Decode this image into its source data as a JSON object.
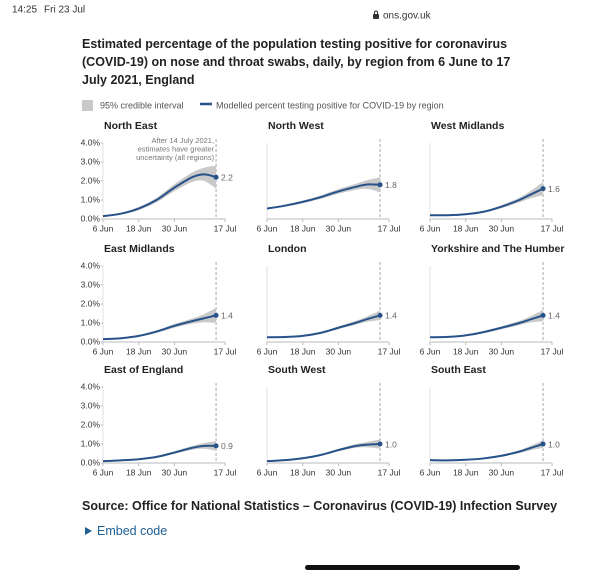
{
  "status_bar": {
    "time": "14:25",
    "date": "Fri 23 Jul",
    "url": "ons.gov.uk"
  },
  "title": "Estimated percentage of the population testing positive for coronavirus (COVID-19) on nose and throat swabs, daily, by region from 6 June to 17 July 2021, England",
  "legend": {
    "band": "95% credible interval",
    "line": "Modelled percent testing positive for COVID-19 by region"
  },
  "source": "Source: Office for National Statistics – Coronavirus (COVID-19) Infection Survey",
  "embed": "Embed code",
  "chart_data": [
    {
      "type": "line",
      "title": "North East",
      "color": "#27528a",
      "band_color": "#c9c9c9",
      "x": [
        "2021-06-06",
        "2021-06-12",
        "2021-06-18",
        "2021-06-24",
        "2021-06-30",
        "2021-07-06",
        "2021-07-10",
        "2021-07-14"
      ],
      "values": [
        0.15,
        0.28,
        0.55,
        1.0,
        1.65,
        2.2,
        2.35,
        2.2
      ],
      "lower": [
        0.11,
        0.23,
        0.47,
        0.88,
        1.47,
        1.95,
        2.0,
        1.6
      ],
      "upper": [
        0.19,
        0.33,
        0.63,
        1.12,
        1.83,
        2.45,
        2.7,
        2.8
      ],
      "value_labels": [
        null,
        null,
        null,
        null,
        null,
        null,
        null,
        "2.2"
      ],
      "xlim": [
        "2021-06-06",
        "2021-07-17"
      ],
      "xticks": [
        {
          "value": "2021-06-06",
          "label": "6 Jun"
        },
        {
          "value": "2021-06-18",
          "label": "18 Jun"
        },
        {
          "value": "2021-06-30",
          "label": "30 Jun"
        },
        {
          "value": "2021-07-17",
          "label": "17 Jul"
        }
      ],
      "ylim": [
        0,
        4
      ],
      "yticks": [
        {
          "value": 0,
          "label": "0.0%"
        },
        {
          "value": 1,
          "label": "1.0%"
        },
        {
          "value": 2,
          "label": "2.0%"
        },
        {
          "value": 3,
          "label": "3.0%"
        },
        {
          "value": 4,
          "label": "4.0%"
        }
      ],
      "reference_x": "2021-07-14",
      "annotation": [
        "After 14 July 2021,",
        "estimates have greater",
        "uncertainty (all regions)"
      ]
    },
    {
      "type": "line",
      "title": "North West",
      "color": "#27528a",
      "band_color": "#c9c9c9",
      "x": [
        "2021-06-06",
        "2021-06-12",
        "2021-06-18",
        "2021-06-24",
        "2021-06-30",
        "2021-07-06",
        "2021-07-10",
        "2021-07-14"
      ],
      "values": [
        0.55,
        0.7,
        0.9,
        1.15,
        1.45,
        1.7,
        1.82,
        1.8
      ],
      "lower": [
        0.51,
        0.65,
        0.83,
        1.06,
        1.33,
        1.54,
        1.58,
        1.4
      ],
      "upper": [
        0.59,
        0.75,
        0.97,
        1.24,
        1.57,
        1.86,
        2.06,
        2.2
      ],
      "value_labels": [
        null,
        null,
        null,
        null,
        null,
        null,
        null,
        "1.8"
      ],
      "xlim": [
        "2021-06-06",
        "2021-07-17"
      ],
      "xticks": [
        {
          "value": "2021-06-06",
          "label": "6 Jun"
        },
        {
          "value": "2021-06-18",
          "label": "18 Jun"
        },
        {
          "value": "2021-06-30",
          "label": "30 Jun"
        },
        {
          "value": "2021-07-17",
          "label": "17 Jul"
        }
      ],
      "ylim": [
        0,
        4
      ],
      "reference_x": "2021-07-14"
    },
    {
      "type": "line",
      "title": "West Midlands",
      "color": "#27528a",
      "band_color": "#c9c9c9",
      "x": [
        "2021-06-06",
        "2021-06-12",
        "2021-06-18",
        "2021-06-24",
        "2021-06-30",
        "2021-07-06",
        "2021-07-10",
        "2021-07-14"
      ],
      "values": [
        0.2,
        0.2,
        0.25,
        0.38,
        0.65,
        1.0,
        1.3,
        1.6
      ],
      "lower": [
        0.17,
        0.17,
        0.21,
        0.33,
        0.57,
        0.88,
        1.1,
        1.25
      ],
      "upper": [
        0.23,
        0.23,
        0.29,
        0.43,
        0.73,
        1.12,
        1.5,
        1.95
      ],
      "value_labels": [
        null,
        null,
        null,
        null,
        null,
        null,
        null,
        "1.6"
      ],
      "xlim": [
        "2021-06-06",
        "2021-07-17"
      ],
      "xticks": [
        {
          "value": "2021-06-06",
          "label": "6 Jun"
        },
        {
          "value": "2021-06-18",
          "label": "18 Jun"
        },
        {
          "value": "2021-06-30",
          "label": "30 Jun"
        },
        {
          "value": "2021-07-17",
          "label": "17 Jul"
        }
      ],
      "ylim": [
        0,
        4
      ],
      "reference_x": "2021-07-14"
    },
    {
      "type": "line",
      "title": "East Midlands",
      "color": "#27528a",
      "band_color": "#c9c9c9",
      "x": [
        "2021-06-06",
        "2021-06-12",
        "2021-06-18",
        "2021-06-24",
        "2021-06-30",
        "2021-07-06",
        "2021-07-10",
        "2021-07-14"
      ],
      "values": [
        0.15,
        0.2,
        0.32,
        0.55,
        0.85,
        1.1,
        1.25,
        1.4
      ],
      "lower": [
        0.12,
        0.17,
        0.27,
        0.48,
        0.75,
        0.96,
        1.03,
        1.0
      ],
      "upper": [
        0.18,
        0.23,
        0.37,
        0.62,
        0.95,
        1.24,
        1.47,
        1.8
      ],
      "value_labels": [
        null,
        null,
        null,
        null,
        null,
        null,
        null,
        "1.4"
      ],
      "xlim": [
        "2021-06-06",
        "2021-07-17"
      ],
      "xticks": [
        {
          "value": "2021-06-06",
          "label": "6 Jun"
        },
        {
          "value": "2021-06-18",
          "label": "18 Jun"
        },
        {
          "value": "2021-06-30",
          "label": "30 Jun"
        },
        {
          "value": "2021-07-17",
          "label": "17 Jul"
        }
      ],
      "ylim": [
        0,
        4
      ],
      "yticks": [
        {
          "value": 0,
          "label": "0.0%"
        },
        {
          "value": 1,
          "label": "1.0%"
        },
        {
          "value": 2,
          "label": "2.0%"
        },
        {
          "value": 3,
          "label": "3.0%"
        },
        {
          "value": 4,
          "label": "4.0%"
        }
      ],
      "reference_x": "2021-07-14"
    },
    {
      "type": "line",
      "title": "London",
      "color": "#27528a",
      "band_color": "#c9c9c9",
      "x": [
        "2021-06-06",
        "2021-06-12",
        "2021-06-18",
        "2021-06-24",
        "2021-06-30",
        "2021-07-06",
        "2021-07-10",
        "2021-07-14"
      ],
      "values": [
        0.25,
        0.26,
        0.32,
        0.48,
        0.75,
        1.02,
        1.22,
        1.4
      ],
      "lower": [
        0.22,
        0.23,
        0.28,
        0.43,
        0.68,
        0.92,
        1.07,
        1.15
      ],
      "upper": [
        0.28,
        0.29,
        0.36,
        0.53,
        0.82,
        1.12,
        1.37,
        1.65
      ],
      "value_labels": [
        null,
        null,
        null,
        null,
        null,
        null,
        null,
        "1.4"
      ],
      "xlim": [
        "2021-06-06",
        "2021-07-17"
      ],
      "xticks": [
        {
          "value": "2021-06-06",
          "label": "6 Jun"
        },
        {
          "value": "2021-06-18",
          "label": "18 Jun"
        },
        {
          "value": "2021-06-30",
          "label": "30 Jun"
        },
        {
          "value": "2021-07-17",
          "label": "17 Jul"
        }
      ],
      "ylim": [
        0,
        4
      ],
      "reference_x": "2021-07-14"
    },
    {
      "type": "line",
      "title": "Yorkshire and The Humber",
      "color": "#27528a",
      "band_color": "#c9c9c9",
      "x": [
        "2021-06-06",
        "2021-06-12",
        "2021-06-18",
        "2021-06-24",
        "2021-06-30",
        "2021-07-06",
        "2021-07-10",
        "2021-07-14"
      ],
      "values": [
        0.25,
        0.27,
        0.35,
        0.52,
        0.75,
        1.0,
        1.2,
        1.4
      ],
      "lower": [
        0.22,
        0.24,
        0.31,
        0.46,
        0.67,
        0.89,
        1.03,
        1.1
      ],
      "upper": [
        0.28,
        0.3,
        0.39,
        0.58,
        0.83,
        1.11,
        1.37,
        1.7
      ],
      "value_labels": [
        null,
        null,
        null,
        null,
        null,
        null,
        null,
        "1.4"
      ],
      "xlim": [
        "2021-06-06",
        "2021-07-17"
      ],
      "xticks": [
        {
          "value": "2021-06-06",
          "label": "6 Jun"
        },
        {
          "value": "2021-06-18",
          "label": "18 Jun"
        },
        {
          "value": "2021-06-30",
          "label": "30 Jun"
        },
        {
          "value": "2021-07-17",
          "label": "17 Jul"
        }
      ],
      "ylim": [
        0,
        4
      ],
      "reference_x": "2021-07-14"
    },
    {
      "type": "line",
      "title": "East of England",
      "color": "#27528a",
      "band_color": "#c9c9c9",
      "x": [
        "2021-06-06",
        "2021-06-12",
        "2021-06-18",
        "2021-06-24",
        "2021-06-30",
        "2021-07-06",
        "2021-07-10",
        "2021-07-14"
      ],
      "values": [
        0.1,
        0.14,
        0.2,
        0.32,
        0.55,
        0.8,
        0.9,
        0.9
      ],
      "lower": [
        0.08,
        0.11,
        0.16,
        0.27,
        0.48,
        0.7,
        0.75,
        0.65
      ],
      "upper": [
        0.12,
        0.17,
        0.24,
        0.37,
        0.62,
        0.9,
        1.05,
        1.15
      ],
      "value_labels": [
        null,
        null,
        null,
        null,
        null,
        null,
        null,
        "0.9"
      ],
      "xlim": [
        "2021-06-06",
        "2021-07-17"
      ],
      "xticks": [
        {
          "value": "2021-06-06",
          "label": "6 Jun"
        },
        {
          "value": "2021-06-18",
          "label": "18 Jun"
        },
        {
          "value": "2021-06-30",
          "label": "30 Jun"
        },
        {
          "value": "2021-07-17",
          "label": "17 Jul"
        }
      ],
      "ylim": [
        0,
        4
      ],
      "yticks": [
        {
          "value": 0,
          "label": "0.0%"
        },
        {
          "value": 1,
          "label": "1.0%"
        },
        {
          "value": 2,
          "label": "2.0%"
        },
        {
          "value": 3,
          "label": "3.0%"
        },
        {
          "value": 4,
          "label": "4.0%"
        }
      ],
      "reference_x": "2021-07-14"
    },
    {
      "type": "line",
      "title": "South West",
      "color": "#27528a",
      "band_color": "#c9c9c9",
      "x": [
        "2021-06-06",
        "2021-06-12",
        "2021-06-18",
        "2021-06-24",
        "2021-06-30",
        "2021-07-06",
        "2021-07-10",
        "2021-07-14"
      ],
      "values": [
        0.1,
        0.15,
        0.25,
        0.42,
        0.68,
        0.9,
        0.97,
        1.0
      ],
      "lower": [
        0.08,
        0.12,
        0.21,
        0.37,
        0.61,
        0.8,
        0.82,
        0.75
      ],
      "upper": [
        0.12,
        0.18,
        0.29,
        0.47,
        0.75,
        1.0,
        1.12,
        1.25
      ],
      "value_labels": [
        null,
        null,
        null,
        null,
        null,
        null,
        null,
        "1.0"
      ],
      "xlim": [
        "2021-06-06",
        "2021-07-17"
      ],
      "xticks": [
        {
          "value": "2021-06-06",
          "label": "6 Jun"
        },
        {
          "value": "2021-06-18",
          "label": "18 Jun"
        },
        {
          "value": "2021-06-30",
          "label": "30 Jun"
        },
        {
          "value": "2021-07-17",
          "label": "17 Jul"
        }
      ],
      "ylim": [
        0,
        4
      ],
      "reference_x": "2021-07-14"
    },
    {
      "type": "line",
      "title": "South East",
      "color": "#27528a",
      "band_color": "#c9c9c9",
      "x": [
        "2021-06-06",
        "2021-06-12",
        "2021-06-18",
        "2021-06-24",
        "2021-06-30",
        "2021-07-06",
        "2021-07-10",
        "2021-07-14"
      ],
      "values": [
        0.15,
        0.14,
        0.17,
        0.24,
        0.38,
        0.6,
        0.8,
        1.0
      ],
      "lower": [
        0.13,
        0.12,
        0.14,
        0.2,
        0.33,
        0.53,
        0.68,
        0.8
      ],
      "upper": [
        0.17,
        0.16,
        0.2,
        0.28,
        0.43,
        0.67,
        0.92,
        1.2
      ],
      "value_labels": [
        null,
        null,
        null,
        null,
        null,
        null,
        null,
        "1.0"
      ],
      "xlim": [
        "2021-06-06",
        "2021-07-17"
      ],
      "xticks": [
        {
          "value": "2021-06-06",
          "label": "6 Jun"
        },
        {
          "value": "2021-06-18",
          "label": "18 Jun"
        },
        {
          "value": "2021-06-30",
          "label": "30 Jun"
        },
        {
          "value": "2021-07-17",
          "label": "17 Jul"
        }
      ],
      "ylim": [
        0,
        4
      ],
      "reference_x": "2021-07-14"
    }
  ]
}
